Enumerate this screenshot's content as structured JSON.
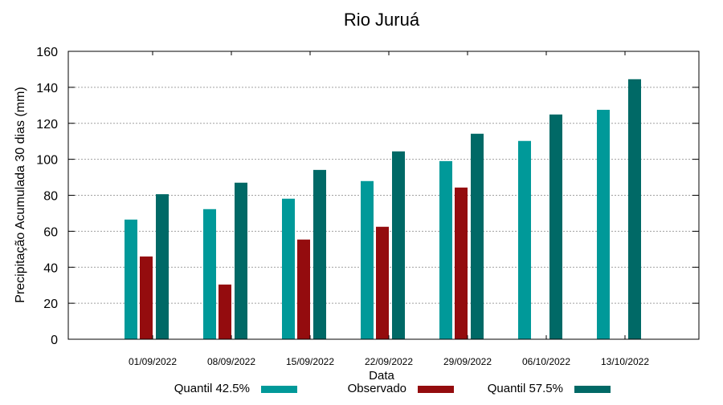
{
  "chart_data": {
    "type": "bar",
    "title": "Rio Juruá",
    "xlabel": "Data",
    "ylabel": "Precipitação Acumulada 30 dias (mm)",
    "ylim": [
      0,
      160
    ],
    "yticks": [
      0,
      20,
      40,
      60,
      80,
      100,
      120,
      140,
      160
    ],
    "grid": true,
    "legend_position": "bottom",
    "categories": [
      "01/09/2022",
      "08/09/2022",
      "15/09/2022",
      "22/09/2022",
      "29/09/2022",
      "06/10/2022",
      "13/10/2022"
    ],
    "series": [
      {
        "name": "Quantil 42.5%",
        "color": "#009999",
        "values": [
          66.5,
          72.3,
          78.1,
          87.9,
          99.0,
          110.2,
          127.5
        ]
      },
      {
        "name": "Observado",
        "color": "#940c0e",
        "values": [
          46.0,
          30.4,
          55.4,
          62.5,
          84.3,
          null,
          null
        ]
      },
      {
        "name": "Quantil 57.5%",
        "color": "#006966",
        "values": [
          80.6,
          87.0,
          94.1,
          104.4,
          114.2,
          124.9,
          144.5
        ]
      }
    ]
  }
}
